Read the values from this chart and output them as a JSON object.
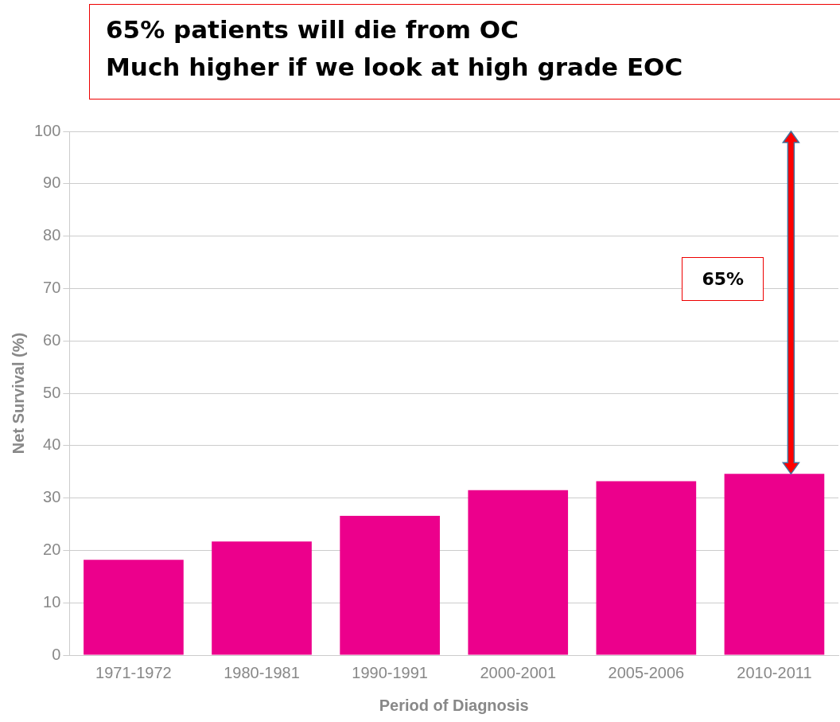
{
  "chart_data": {
    "type": "bar",
    "title": "65% patients will die from OC",
    "subtitle": "Much higher if we look at high grade EOC",
    "xlabel": "Period of Diagnosis",
    "ylabel": "Net Survival (%)",
    "categories": [
      "1971-1972",
      "1980-1981",
      "1990-1991",
      "2000-2001",
      "2005-2006",
      "2010-2011"
    ],
    "values": [
      18.2,
      21.7,
      26.6,
      31.5,
      33.2,
      34.6
    ],
    "color": "#ec008c",
    "ylim": [
      0,
      100
    ],
    "yticks": [
      0,
      10,
      20,
      30,
      40,
      50,
      60,
      70,
      80,
      90,
      100
    ],
    "grid": "y",
    "legend": false,
    "annotations": [
      "65%"
    ]
  }
}
